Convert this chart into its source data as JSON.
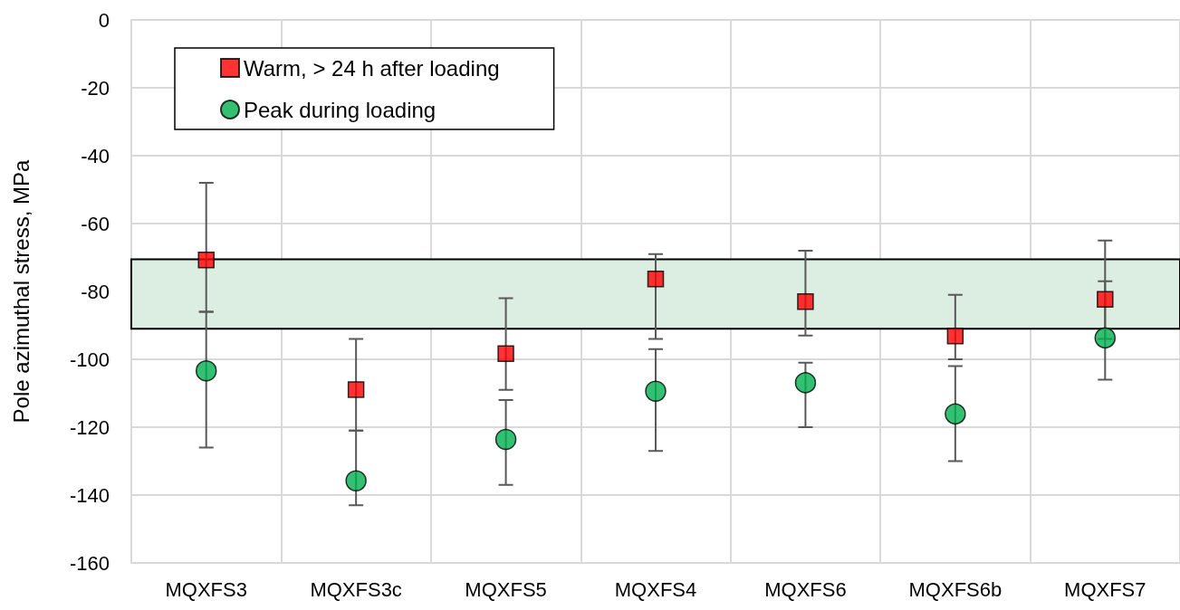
{
  "chart_data": {
    "type": "scatter",
    "ylabel": "Pole azimuthal stress, MPa",
    "categories": [
      "MQXFS3",
      "MQXFS3c",
      "MQXFS5",
      "MQXFS4",
      "MQXFS6",
      "MQXFS6b",
      "MQXFS7"
    ],
    "series": [
      {
        "name": "Warm, > 24 h after loading",
        "color": "#ff0000",
        "marker": "square",
        "values": [
          -70.7,
          -108.9,
          -98.3,
          -76.3,
          -83,
          -93.1,
          -82.3
        ],
        "errors": [
          [
            -86,
            -48
          ],
          [
            -121,
            -94
          ],
          [
            -109,
            -82
          ],
          [
            -94,
            -69
          ],
          [
            -93,
            -68
          ],
          [
            -100,
            -81
          ],
          [
            -94,
            -65
          ]
        ]
      },
      {
        "name": "Peak during loading",
        "color": "#00b050",
        "marker": "circle",
        "values": [
          -103.4,
          -135.8,
          -123.6,
          -109.4,
          -106.9,
          -116.1,
          -93.7
        ],
        "errors": [
          [
            -126,
            -86
          ],
          [
            -143,
            -121
          ],
          [
            -137,
            -112
          ],
          [
            -127,
            -97
          ],
          [
            -120,
            -101
          ],
          [
            -130,
            -102
          ],
          [
            -106,
            -77
          ]
        ]
      }
    ],
    "ylim": [
      -160,
      0
    ],
    "yticks": [
      -160,
      -140,
      -120,
      -100,
      -80,
      -60,
      -40,
      -20,
      0
    ],
    "bands": [
      {
        "axis": "y",
        "from": -91,
        "to": -70.5,
        "color": "#dcede2"
      }
    ],
    "grid": true,
    "legend": "top left"
  }
}
